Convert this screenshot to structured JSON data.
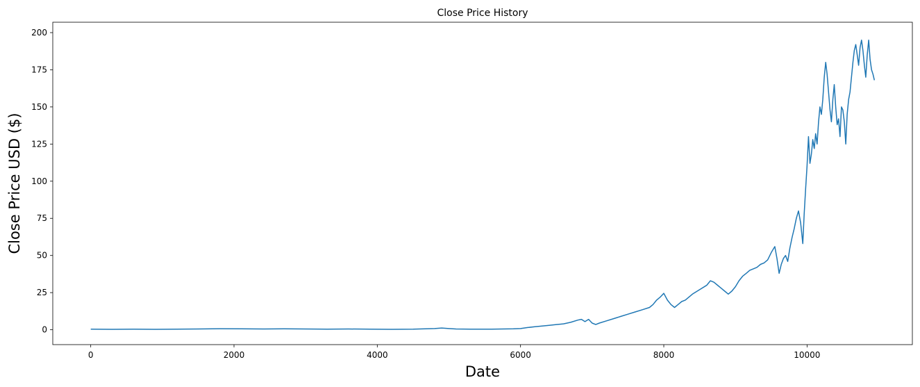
{
  "chart_data": {
    "type": "line",
    "title": "Close Price History",
    "xlabel": "Date",
    "ylabel": "Close Price USD ($)",
    "xlim": [
      -530,
      11470
    ],
    "ylim": [
      -10,
      207
    ],
    "xticks": [
      0,
      2000,
      4000,
      6000,
      8000,
      10000
    ],
    "yticks": [
      0,
      25,
      50,
      75,
      100,
      125,
      150,
      175,
      200
    ],
    "grid": false,
    "legend": "none",
    "colors": {
      "line": "#1f77b4",
      "axes": "#000000"
    },
    "series": [
      {
        "x": [
          0,
          300,
          600,
          900,
          1200,
          1500,
          1800,
          2100,
          2400,
          2700,
          3000,
          3300,
          3600,
          3900,
          4200,
          4500,
          4800,
          4900,
          5000,
          5100,
          5300,
          5600,
          5900,
          6000,
          6100,
          6200,
          6300,
          6400,
          6500,
          6600,
          6700,
          6800,
          6850,
          6900,
          6950,
          7000,
          7050,
          7100,
          7200,
          7300,
          7400,
          7500,
          7600,
          7700,
          7800,
          7850,
          7900,
          7950,
          8000,
          8050,
          8100,
          8150,
          8200,
          8250,
          8300,
          8400,
          8500,
          8600,
          8650,
          8700,
          8750,
          8800,
          8850,
          8900,
          8950,
          9000,
          9050,
          9100,
          9150,
          9200,
          9250,
          9300,
          9350,
          9400,
          9450,
          9500,
          9550,
          9580,
          9610,
          9640,
          9670,
          9700,
          9730,
          9760,
          9790,
          9820,
          9850,
          9880,
          9910,
          9940,
          9960,
          9980,
          10000,
          10020,
          10040,
          10060,
          10080,
          10100,
          10120,
          10140,
          10160,
          10180,
          10200,
          10220,
          10240,
          10260,
          10280,
          10300,
          10320,
          10340,
          10360,
          10380,
          10400,
          10420,
          10440,
          10460,
          10480,
          10500,
          10520,
          10540,
          10560,
          10580,
          10600,
          10620,
          10640,
          10660,
          10680,
          10700,
          10720,
          10740,
          10760,
          10780,
          10800,
          10820,
          10840,
          10860,
          10880,
          10900,
          10920,
          10940
        ],
        "y": [
          0.4,
          0.3,
          0.4,
          0.3,
          0.4,
          0.5,
          0.7,
          0.6,
          0.5,
          0.6,
          0.5,
          0.4,
          0.5,
          0.4,
          0.3,
          0.4,
          0.8,
          1.2,
          0.8,
          0.5,
          0.4,
          0.4,
          0.6,
          0.8,
          1.5,
          2.0,
          2.5,
          3.0,
          3.5,
          4.0,
          5.0,
          6.5,
          7.0,
          5.5,
          7.0,
          4.5,
          3.5,
          4.5,
          6.0,
          7.5,
          9.0,
          10.5,
          12.0,
          13.5,
          15.0,
          17.0,
          20.0,
          22.0,
          24.5,
          20.0,
          17.0,
          15.0,
          17.0,
          19.0,
          20.0,
          24.0,
          27.0,
          30.0,
          33.0,
          32.0,
          30.0,
          28.0,
          26.0,
          24.0,
          26.0,
          29.0,
          33.0,
          36.0,
          38.0,
          40.0,
          41.0,
          42.0,
          44.0,
          45.0,
          47.0,
          52.0,
          56.0,
          48.0,
          38.0,
          44.0,
          48.0,
          50.0,
          46.0,
          55.0,
          62.0,
          68.0,
          75.0,
          80.0,
          72.0,
          58.0,
          78.0,
          95.0,
          110.0,
          130.0,
          112.0,
          118.0,
          128.0,
          122.0,
          132.0,
          125.0,
          140.0,
          150.0,
          145.0,
          155.0,
          170.0,
          180.0,
          172.0,
          160.0,
          148.0,
          140.0,
          155.0,
          165.0,
          150.0,
          138.0,
          142.0,
          130.0,
          150.0,
          148.0,
          140.0,
          125.0,
          145.0,
          155.0,
          160.0,
          170.0,
          180.0,
          188.0,
          192.0,
          185.0,
          178.0,
          190.0,
          195.0,
          188.0,
          178.0,
          170.0,
          185.0,
          195.0,
          182.0,
          175.0,
          172.0,
          168.0
        ]
      }
    ]
  }
}
